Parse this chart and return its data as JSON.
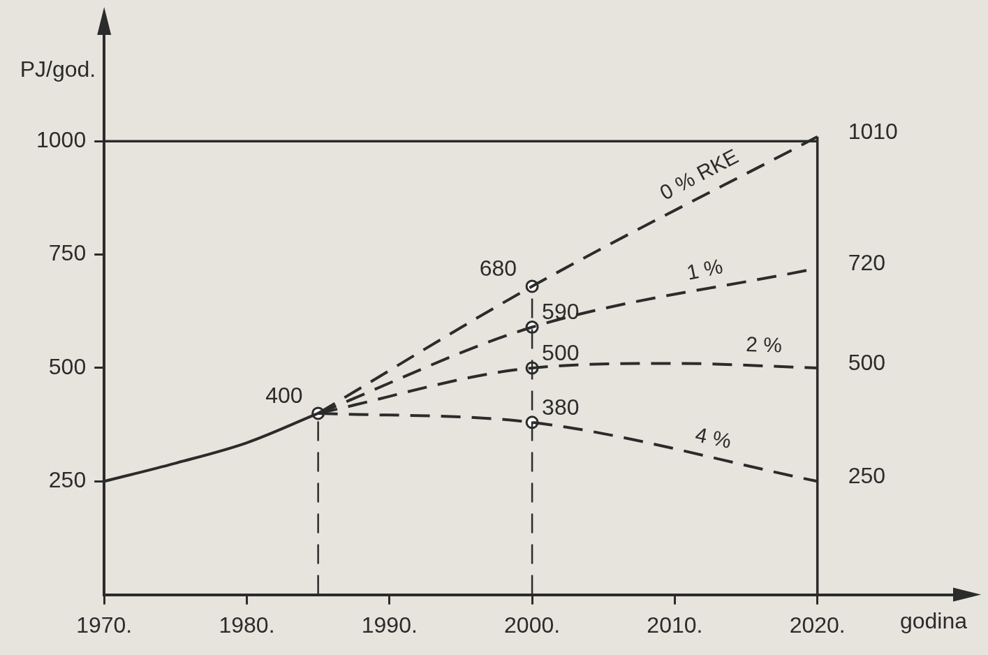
{
  "chart_data": {
    "type": "line",
    "xlabel": "godina",
    "ylabel": "PJ/god.",
    "xlim": [
      1970,
      2030
    ],
    "ylim": [
      0,
      1250
    ],
    "xticks": [
      {
        "value": 1970,
        "label": "1970."
      },
      {
        "value": 1980,
        "label": "1980."
      },
      {
        "value": 1990,
        "label": "1990."
      },
      {
        "value": 2000,
        "label": "2000."
      },
      {
        "value": 2010,
        "label": "2010."
      },
      {
        "value": 2020,
        "label": "2020."
      }
    ],
    "yticks": [
      250,
      500,
      750,
      1000
    ],
    "grid": false,
    "legend": false,
    "series": [
      {
        "type": "line",
        "color": "#2b2b2b",
        "x": [
          1970,
          1975,
          1980,
          1985
        ],
        "values": [
          250,
          290,
          335,
          400
        ],
        "line_style": "solid",
        "marker": "none"
      },
      {
        "type": "line",
        "name": "0 % RKE",
        "color": "#2b2b2b",
        "x": [
          1985,
          2000,
          2020
        ],
        "values": [
          400,
          680,
          1010
        ],
        "line_style": "dashed",
        "marker": "none",
        "value_labels": [
          null,
          null,
          "1010"
        ]
      },
      {
        "type": "line",
        "name": "1 %",
        "color": "#2b2b2b",
        "x": [
          1985,
          2000,
          2020
        ],
        "values": [
          400,
          590,
          720
        ],
        "line_style": "dashed",
        "marker": "none",
        "value_labels": [
          null,
          null,
          "720"
        ]
      },
      {
        "type": "line",
        "name": "2 %",
        "color": "#2b2b2b",
        "x": [
          1985,
          2000,
          2010,
          2020
        ],
        "values": [
          400,
          500,
          510,
          500
        ],
        "line_style": "dashed",
        "marker": "none",
        "value_labels": [
          null,
          null,
          null,
          "500"
        ]
      },
      {
        "type": "line",
        "name": "4 %",
        "color": "#2b2b2b",
        "x": [
          1985,
          2000,
          2020
        ],
        "values": [
          400,
          380,
          250
        ],
        "line_style": "dashed",
        "marker": "none",
        "value_labels": [
          null,
          null,
          "250"
        ]
      },
      {
        "type": "scatter",
        "color": "#2b2b2b",
        "x": [
          1985,
          2000,
          2000,
          2000,
          2000
        ],
        "values": [
          400,
          680,
          590,
          500,
          380
        ],
        "marker": "circle",
        "value_labels": [
          "400",
          "680",
          "590",
          "500",
          "380"
        ]
      }
    ],
    "ref_lines": [
      {
        "axis": "x",
        "value": 1985,
        "line_style": "dashed",
        "color": "#2b2b2b"
      },
      {
        "axis": "x",
        "value": 2000,
        "line_style": "dashed",
        "color": "#2b2b2b"
      },
      {
        "axis": "x",
        "value": 2020,
        "line_style": "solid",
        "color": "#2b2b2b"
      },
      {
        "axis": "y",
        "value": 1000,
        "line_style": "solid",
        "color": "#2b2b2b"
      }
    ]
  }
}
